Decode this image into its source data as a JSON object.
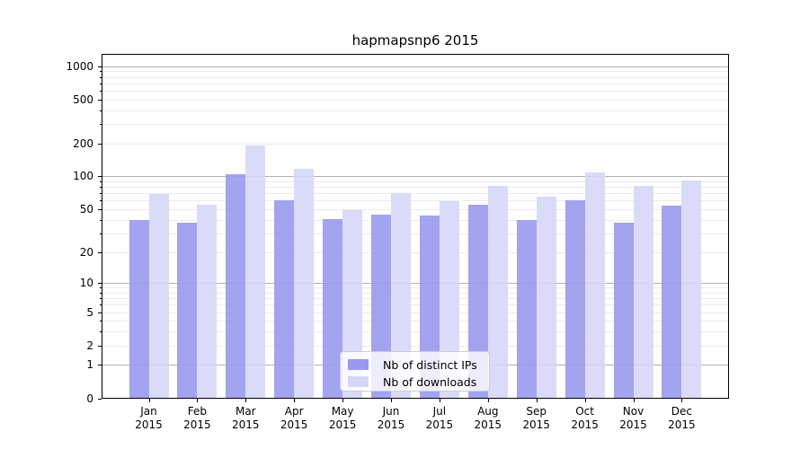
{
  "figure_title": "hapmapsnp6 2015",
  "chart_data": {
    "type": "bar",
    "title": "hapmapsnp6 2015",
    "categories": [
      "Jan",
      "Feb",
      "Mar",
      "Apr",
      "May",
      "Jun",
      "Jul",
      "Aug",
      "Sep",
      "Oct",
      "Nov",
      "Dec"
    ],
    "x_year_label": "2015",
    "series": [
      {
        "name": "Nb of distinct IPs",
        "color": "#9999ee",
        "values": [
          40,
          38,
          106,
          61,
          41,
          45,
          44,
          56,
          40,
          61,
          38,
          54
        ]
      },
      {
        "name": "Nb of downloads",
        "color": "#d6d6f8",
        "values": [
          70,
          55,
          192,
          118,
          50,
          71,
          60,
          82,
          66,
          110,
          82,
          93
        ]
      }
    ],
    "xlabel": "",
    "ylabel": "",
    "yscale": "log1p",
    "ytick_values": [
      0,
      1,
      2,
      5,
      10,
      20,
      50,
      100,
      200,
      500,
      1000
    ],
    "ytick_labels": [
      "0",
      "1",
      "2",
      "5",
      "10",
      "20",
      "50",
      "100",
      "200",
      "500",
      "1000"
    ],
    "ylim": [
      0,
      1310
    ],
    "grid": "on",
    "legend_position": "lower center"
  },
  "colors": {
    "major_grid": "#b0b0b0",
    "minor_grid": "#ebebeb",
    "axis": "#000000",
    "legend_border": "#cccccc",
    "background": "#ffffff"
  }
}
